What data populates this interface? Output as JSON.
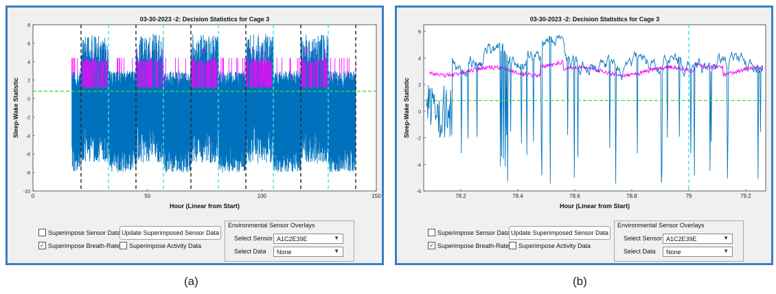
{
  "panels": [
    {
      "caption": "(a)",
      "controls": {
        "superimpose_sensor": {
          "label": "Superimpose Sensor Data",
          "checked": false
        },
        "superimpose_breath": {
          "label": "Superimpose Breath-Rate",
          "checked": true
        },
        "superimpose_activity": {
          "label": "Superimpose Activity Data",
          "checked": false
        },
        "update_button": "Update Superimposed Sensor Data",
        "env_group_title": "Environmental Sensor Overlays",
        "select_sensor_label": "Select Sensor",
        "select_sensor_value": "A1C2E39E",
        "select_data_label": "Select Data",
        "select_data_value": "None"
      }
    },
    {
      "caption": "(b)",
      "controls": {
        "superimpose_sensor": {
          "label": "Superimpose Sensor Data",
          "checked": false
        },
        "superimpose_breath": {
          "label": "Superimpose Breath-Rate",
          "checked": true
        },
        "superimpose_activity": {
          "label": "Superimpose Activity Data",
          "checked": false
        },
        "update_button": "Update Superimposed Sensor Data",
        "env_group_title": "Environmental Sensor Overlays",
        "select_sensor_label": "Select Sensor",
        "select_sensor_value": "A1C2E39E",
        "select_data_label": "Select Data",
        "select_data_value": "None"
      }
    }
  ],
  "colors": {
    "statistic": "#0072bd",
    "breath_rate": "#ff00ff",
    "threshold": "#33dd33",
    "light_marker": "#33e6e6",
    "dark_marker": "#222222",
    "window_border": "#3b7bc8"
  },
  "chart_data": [
    {
      "type": "line",
      "title": "03-30-2023 -2: Decision Statistics for Cage 3",
      "xlabel": "Hour (Linear from Start)",
      "ylabel": "Sleep-Wake Statistic",
      "xlim": [
        0,
        150
      ],
      "ylim": [
        -10,
        8
      ],
      "xticks": [
        0,
        50,
        100,
        150
      ],
      "yticks": [
        -10,
        -8,
        -6,
        -4,
        -2,
        0,
        2,
        4,
        6,
        8
      ],
      "threshold_y": 0.8,
      "dark_markers_x": [
        21,
        45,
        69,
        93,
        117,
        141
      ],
      "light_markers_x": [
        33,
        57,
        81,
        105,
        129
      ],
      "series": [
        {
          "kind": "statistic",
          "x_range": [
            17,
            141
          ],
          "values_min": -8,
          "values_max": 7.2
        },
        {
          "kind": "breath_rate",
          "x_range": [
            17,
            141
          ],
          "values_min": 0.6,
          "values_max": 5.8
        }
      ]
    },
    {
      "type": "line",
      "title": "03-30-2023 -2: Decision Statistics for Cage 3",
      "xlabel": "Hour (Linear from Start)",
      "ylabel": "Sleep-Wake Statistic",
      "xlim": [
        78.07,
        79.27
      ],
      "ylim": [
        -6,
        6.5
      ],
      "xticks": [
        78.2,
        78.4,
        78.6,
        78.8,
        79,
        79.2
      ],
      "xticklabels": [
        "78.2",
        "78.4",
        "78.6",
        "78.8",
        "79",
        "79.2"
      ],
      "yticks": [
        -6,
        -4,
        -2,
        0,
        2,
        4,
        6
      ],
      "threshold_y": 0.8,
      "light_markers_x": [
        79.0
      ],
      "series": [
        {
          "kind": "statistic",
          "values_min": -5.8,
          "values_max": 5.9
        },
        {
          "kind": "breath_rate",
          "values_min": 1.0,
          "values_max": 4.2
        }
      ]
    }
  ]
}
